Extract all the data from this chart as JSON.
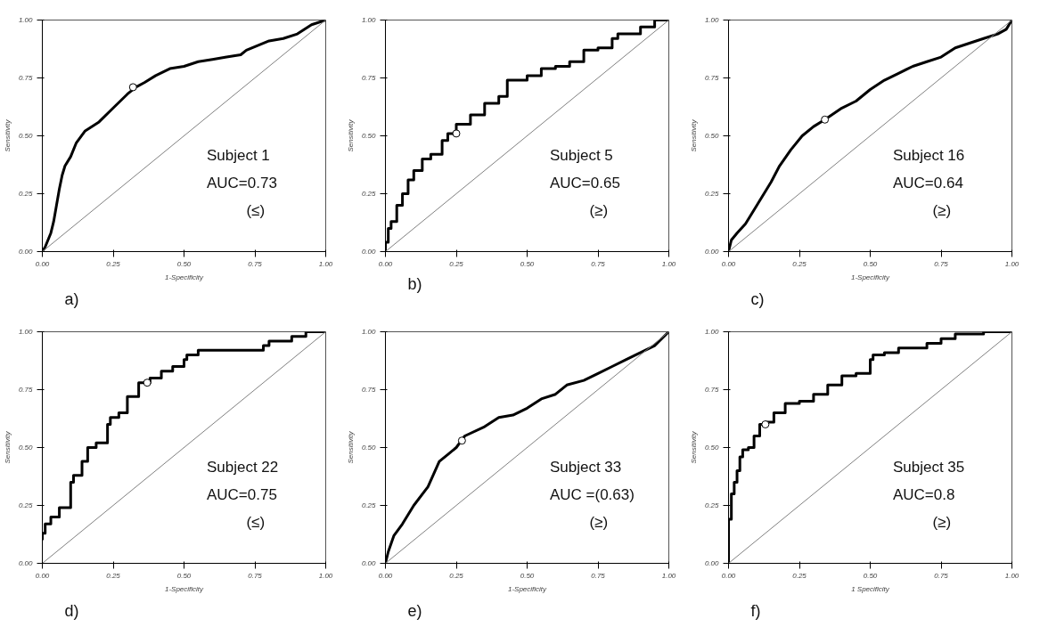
{
  "chart_data": [
    {
      "type": "line",
      "ylabel": "Sensitivity",
      "xlabel": "1-Specificity",
      "xlim": [
        0,
        1
      ],
      "ylim": [
        0,
        1
      ],
      "xticks": [
        {
          "value": 0,
          "label": "0.00"
        },
        {
          "value": 0.25,
          "label": "0.25"
        },
        {
          "value": 0.5,
          "label": "0.50"
        },
        {
          "value": 0.75,
          "label": "0.75"
        },
        {
          "value": 1,
          "label": "1.00"
        }
      ],
      "yticks": [
        {
          "value": 0,
          "label": "0.00"
        },
        {
          "value": 0.25,
          "label": "0.25"
        },
        {
          "value": 0.5,
          "label": "0.50"
        },
        {
          "value": 0.75,
          "label": "0.75"
        },
        {
          "value": 1,
          "label": "1.00"
        }
      ],
      "grid": false,
      "series": [
        {
          "color": "#000000",
          "x": [
            0,
            0.01,
            0.03,
            0.04,
            0.05,
            0.06,
            0.07,
            0.08,
            0.1,
            0.12,
            0.15,
            0.2,
            0.25,
            0.3,
            0.33,
            0.36,
            0.4,
            0.45,
            0.5,
            0.55,
            0.6,
            0.65,
            0.7,
            0.72,
            0.8,
            0.85,
            0.9,
            0.95,
            1
          ],
          "values": [
            0,
            0.02,
            0.08,
            0.13,
            0.2,
            0.27,
            0.33,
            0.37,
            0.41,
            0.47,
            0.52,
            0.56,
            0.62,
            0.68,
            0.71,
            0.73,
            0.76,
            0.79,
            0.8,
            0.82,
            0.83,
            0.84,
            0.85,
            0.87,
            0.91,
            0.92,
            0.94,
            0.98,
            1
          ]
        },
        {
          "type": "line",
          "color": "#808080",
          "x": [
            0,
            1
          ],
          "values": [
            0,
            1
          ]
        },
        {
          "type": "scatter",
          "marker": "circle",
          "color": "#000000",
          "x": [
            0.32
          ],
          "values": [
            0.71
          ]
        }
      ],
      "annotations": [
        "Subject 1",
        "AUC=0.73",
        "(≤)",
        "a)"
      ]
    },
    {
      "type": "line",
      "ylabel": "Sensitivity",
      "xlim": [
        0,
        1
      ],
      "ylim": [
        0,
        1
      ],
      "xticks": [
        {
          "value": 0,
          "label": "0.00"
        },
        {
          "value": 0.25,
          "label": "0.25"
        },
        {
          "value": 0.5,
          "label": "0.50"
        },
        {
          "value": 0.75,
          "label": "0.75"
        },
        {
          "value": 1,
          "label": "1.00"
        }
      ],
      "yticks": [
        {
          "value": 0,
          "label": "0.00"
        },
        {
          "value": 0.25,
          "label": "0.25"
        },
        {
          "value": 0.5,
          "label": "0.50"
        },
        {
          "value": 0.75,
          "label": "0.75"
        },
        {
          "value": 1,
          "label": "1.00"
        }
      ],
      "grid": false,
      "series": [
        {
          "type": "step",
          "color": "#000000",
          "x": [
            0,
            0.01,
            0.02,
            0.04,
            0.06,
            0.08,
            0.1,
            0.13,
            0.16,
            0.2,
            0.22,
            0.25,
            0.3,
            0.35,
            0.4,
            0.43,
            0.5,
            0.55,
            0.6,
            0.65,
            0.7,
            0.75,
            0.8,
            0.82,
            0.9,
            0.95,
            1
          ],
          "values": [
            0,
            0.04,
            0.1,
            0.13,
            0.2,
            0.25,
            0.31,
            0.35,
            0.4,
            0.42,
            0.48,
            0.51,
            0.55,
            0.59,
            0.64,
            0.67,
            0.74,
            0.76,
            0.79,
            0.8,
            0.82,
            0.87,
            0.88,
            0.92,
            0.94,
            0.97,
            1
          ]
        },
        {
          "type": "line",
          "color": "#808080",
          "x": [
            0,
            1
          ],
          "values": [
            0,
            1
          ]
        },
        {
          "type": "scatter",
          "marker": "circle",
          "color": "#000000",
          "x": [
            0.25
          ],
          "values": [
            0.51
          ]
        }
      ],
      "annotations": [
        "Subject 5",
        "AUC=0.65",
        "(≥)",
        "b)"
      ]
    },
    {
      "type": "line",
      "ylabel": "Sensitivity",
      "xlabel": "1-Specificity",
      "xlim": [
        0,
        1
      ],
      "ylim": [
        0,
        1
      ],
      "xticks": [
        {
          "value": 0,
          "label": "0.00"
        },
        {
          "value": 0.25,
          "label": "0.25"
        },
        {
          "value": 0.5,
          "label": "0.50"
        },
        {
          "value": 0.75,
          "label": "0.75"
        },
        {
          "value": 1,
          "label": "1.00"
        }
      ],
      "yticks": [
        {
          "value": 0,
          "label": "0.00"
        },
        {
          "value": 0.25,
          "label": "0.25"
        },
        {
          "value": 0.5,
          "label": "0.50"
        },
        {
          "value": 0.75,
          "label": "0.75"
        },
        {
          "value": 1,
          "label": "1.00"
        }
      ],
      "grid": false,
      "series": [
        {
          "color": "#000000",
          "x": [
            0,
            0.01,
            0.03,
            0.06,
            0.1,
            0.15,
            0.18,
            0.22,
            0.26,
            0.3,
            0.34,
            0.4,
            0.45,
            0.5,
            0.55,
            0.6,
            0.65,
            0.7,
            0.75,
            0.8,
            0.85,
            0.9,
            0.95,
            0.98,
            1
          ],
          "values": [
            0,
            0.05,
            0.08,
            0.12,
            0.2,
            0.3,
            0.37,
            0.44,
            0.5,
            0.54,
            0.57,
            0.62,
            0.65,
            0.7,
            0.74,
            0.77,
            0.8,
            0.82,
            0.84,
            0.88,
            0.9,
            0.92,
            0.94,
            0.96,
            1
          ]
        },
        {
          "type": "line",
          "color": "#808080",
          "x": [
            0,
            1
          ],
          "values": [
            0,
            1
          ]
        },
        {
          "type": "scatter",
          "marker": "circle",
          "color": "#000000",
          "x": [
            0.34
          ],
          "values": [
            0.57
          ]
        }
      ],
      "annotations": [
        "Subject 16",
        "AUC=0.64",
        "(≥)",
        "c)"
      ]
    },
    {
      "type": "line",
      "ylabel": "Sensitivity",
      "xlabel": "1-Specificity",
      "xlim": [
        0,
        1
      ],
      "ylim": [
        0,
        1
      ],
      "xticks": [
        {
          "value": 0,
          "label": "0.00"
        },
        {
          "value": 0.25,
          "label": "0.25"
        },
        {
          "value": 0.5,
          "label": "0.50"
        },
        {
          "value": 0.75,
          "label": "0.75"
        },
        {
          "value": 1,
          "label": "1.00"
        }
      ],
      "yticks": [
        {
          "value": 0,
          "label": "0.00"
        },
        {
          "value": 0.25,
          "label": "0.25"
        },
        {
          "value": 0.5,
          "label": "0.50"
        },
        {
          "value": 0.75,
          "label": "0.75"
        },
        {
          "value": 1,
          "label": "1.00"
        }
      ],
      "grid": false,
      "series": [
        {
          "type": "step",
          "color": "#000000",
          "x": [
            0,
            0.01,
            0.03,
            0.06,
            0.1,
            0.11,
            0.14,
            0.16,
            0.19,
            0.23,
            0.24,
            0.27,
            0.3,
            0.34,
            0.38,
            0.42,
            0.46,
            0.5,
            0.51,
            0.55,
            0.63,
            0.78,
            0.8,
            0.88,
            0.93,
            1
          ],
          "values": [
            0.1,
            0.13,
            0.17,
            0.2,
            0.24,
            0.35,
            0.38,
            0.44,
            0.5,
            0.52,
            0.6,
            0.63,
            0.65,
            0.72,
            0.78,
            0.8,
            0.83,
            0.85,
            0.88,
            0.9,
            0.92,
            0.92,
            0.94,
            0.96,
            0.98,
            1
          ]
        },
        {
          "type": "line",
          "color": "#808080",
          "x": [
            0,
            1
          ],
          "values": [
            0,
            1
          ]
        },
        {
          "type": "scatter",
          "marker": "circle",
          "color": "#000000",
          "x": [
            0.37
          ],
          "values": [
            0.78
          ]
        }
      ],
      "annotations": [
        "Subject 22",
        "AUC=0.75",
        "(≤)",
        "d)"
      ]
    },
    {
      "type": "line",
      "ylabel": "Sensitivity",
      "xlabel": "1-Specificity",
      "xlim": [
        0,
        1
      ],
      "ylim": [
        0,
        1
      ],
      "xticks": [
        {
          "value": 0,
          "label": "0.00"
        },
        {
          "value": 0.25,
          "label": "0.25"
        },
        {
          "value": 0.5,
          "label": "0.50"
        },
        {
          "value": 0.75,
          "label": "0.75"
        },
        {
          "value": 1,
          "label": "1.00"
        }
      ],
      "yticks": [
        {
          "value": 0,
          "label": "0.00"
        },
        {
          "value": 0.25,
          "label": "0.25"
        },
        {
          "value": 0.5,
          "label": "0.50"
        },
        {
          "value": 0.75,
          "label": "0.75"
        },
        {
          "value": 1,
          "label": "1.00"
        }
      ],
      "grid": false,
      "series": [
        {
          "color": "#000000",
          "x": [
            0,
            0.01,
            0.03,
            0.06,
            0.1,
            0.15,
            0.19,
            0.22,
            0.25,
            0.28,
            0.35,
            0.4,
            0.45,
            0.5,
            0.55,
            0.6,
            0.64,
            0.7,
            0.75,
            0.8,
            0.85,
            0.9,
            0.95,
            1
          ],
          "values": [
            0,
            0.05,
            0.12,
            0.17,
            0.25,
            0.33,
            0.44,
            0.47,
            0.5,
            0.55,
            0.59,
            0.63,
            0.64,
            0.67,
            0.71,
            0.73,
            0.77,
            0.79,
            0.82,
            0.85,
            0.88,
            0.91,
            0.94,
            1
          ]
        },
        {
          "type": "line",
          "color": "#808080",
          "x": [
            0,
            1
          ],
          "values": [
            0,
            1
          ]
        },
        {
          "type": "scatter",
          "marker": "circle",
          "color": "#000000",
          "x": [
            0.27
          ],
          "values": [
            0.53
          ]
        }
      ],
      "annotations": [
        "Subject 33",
        "AUC =(0.63)",
        "(≥)",
        "e)"
      ]
    },
    {
      "type": "line",
      "ylabel": "Sensitivity",
      "xlabel": "1 Specificity",
      "xlim": [
        0,
        1
      ],
      "ylim": [
        0,
        1
      ],
      "xticks": [
        {
          "value": 0,
          "label": "0.00"
        },
        {
          "value": 0.25,
          "label": "0.25"
        },
        {
          "value": 0.5,
          "label": "0.50"
        },
        {
          "value": 0.75,
          "label": "0.75"
        },
        {
          "value": 1,
          "label": "1.00"
        }
      ],
      "yticks": [
        {
          "value": 0,
          "label": "0.00"
        },
        {
          "value": 0.25,
          "label": "0.25"
        },
        {
          "value": 0.5,
          "label": "0.50"
        },
        {
          "value": 0.75,
          "label": "0.75"
        },
        {
          "value": 1,
          "label": "1.00"
        }
      ],
      "grid": false,
      "series": [
        {
          "type": "step",
          "color": "#000000",
          "x": [
            0,
            0.01,
            0.02,
            0.03,
            0.04,
            0.05,
            0.07,
            0.09,
            0.11,
            0.13,
            0.16,
            0.2,
            0.25,
            0.3,
            0.35,
            0.4,
            0.45,
            0.5,
            0.51,
            0.55,
            0.6,
            0.7,
            0.75,
            0.8,
            0.9,
            1
          ],
          "values": [
            0,
            0.19,
            0.3,
            0.35,
            0.4,
            0.46,
            0.49,
            0.5,
            0.55,
            0.6,
            0.61,
            0.65,
            0.69,
            0.7,
            0.73,
            0.77,
            0.81,
            0.82,
            0.88,
            0.9,
            0.91,
            0.93,
            0.95,
            0.97,
            0.99,
            1
          ]
        },
        {
          "type": "line",
          "color": "#808080",
          "x": [
            0,
            1
          ],
          "values": [
            0,
            1
          ]
        },
        {
          "type": "scatter",
          "marker": "circle",
          "color": "#000000",
          "x": [
            0.13
          ],
          "values": [
            0.6
          ]
        }
      ],
      "annotations": [
        "Subject 35",
        "AUC=0.8",
        "(≥)",
        "f)"
      ]
    }
  ]
}
